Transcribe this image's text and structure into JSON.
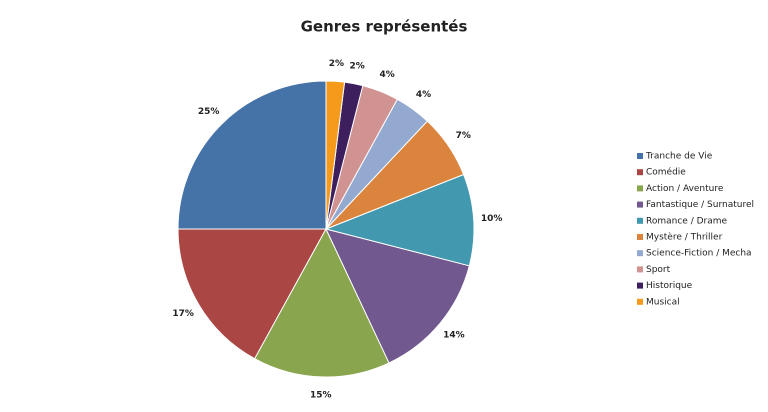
{
  "chart_data": {
    "type": "pie",
    "title": "Genres représentés",
    "categories": [
      "Tranche de Vie",
      "Comédie",
      "Action / Aventure",
      "Fantastique / Surnaturel",
      "Romance / Drame",
      "Mystère / Thriller",
      "Science-Fiction / Mecha",
      "Sport",
      "Historique",
      "Musical"
    ],
    "values": [
      25,
      17,
      15,
      14,
      10,
      7,
      4,
      4,
      2,
      2
    ],
    "value_labels": [
      "25%",
      "17%",
      "15%",
      "14%",
      "10%",
      "7%",
      "4%",
      "4%",
      "2%",
      "2%"
    ],
    "colors": [
      "#4572a7",
      "#aa4643",
      "#89a54e",
      "#71588f",
      "#4198af",
      "#db843d",
      "#93a9cf",
      "#d19392",
      "#3d1f5e",
      "#f59a1b"
    ],
    "legend": "right"
  }
}
